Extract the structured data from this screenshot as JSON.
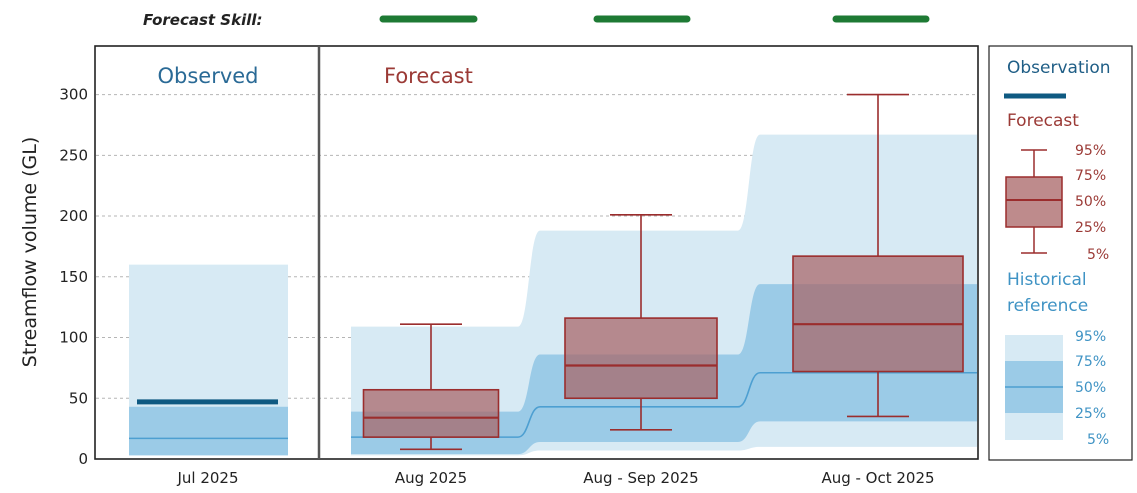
{
  "header": {
    "skill_label": "Forecast Skill:"
  },
  "chart_data": {
    "type": "box",
    "ylabel": "Streamflow volume (GL)",
    "ylim": [
      0,
      340
    ],
    "yticks": [
      0,
      50,
      100,
      150,
      200,
      250,
      300
    ],
    "grid": "dashed horizontal",
    "panels": {
      "observed_title": "Observed",
      "forecast_title": "Forecast"
    },
    "categories": [
      "Jul 2025",
      "Aug 2025",
      "Aug - Sep 2025",
      "Aug - Oct 2025"
    ],
    "observation": {
      "category": "Jul 2025",
      "value": 47
    },
    "observed_reference": {
      "p5": 3,
      "p25": 3,
      "p50": 17,
      "p75": 43,
      "p95": 160
    },
    "forecast_boxes": [
      {
        "category": "Aug 2025",
        "p5": 8,
        "p25": 18,
        "p50": 34,
        "p75": 57,
        "p95": 111
      },
      {
        "category": "Aug - Sep 2025",
        "p5": 24,
        "p25": 50,
        "p50": 77,
        "p75": 116,
        "p95": 201
      },
      {
        "category": "Aug - Oct 2025",
        "p5": 35,
        "p25": 72,
        "p50": 111,
        "p75": 167,
        "p95": 300
      }
    ],
    "historical_reference": [
      {
        "category": "Aug 2025",
        "p5": 3,
        "p25": 4,
        "p50": 18,
        "p75": 39,
        "p95": 109
      },
      {
        "category": "Aug - Sep 2025",
        "p5": 7,
        "p25": 14,
        "p50": 43,
        "p75": 86,
        "p95": 188
      },
      {
        "category": "Aug - Oct 2025",
        "p5": 10,
        "p25": 31,
        "p50": 71,
        "p75": 144,
        "p95": 267
      }
    ],
    "forecast_skill": [
      "good",
      "good",
      "good"
    ],
    "legend": {
      "observation_label": "Observation",
      "forecast_label": "Forecast",
      "historical_label_line1": "Historical",
      "historical_label_line2": "reference",
      "percentiles": [
        "95%",
        "75%",
        "50%",
        "25%",
        "5%"
      ]
    },
    "colors": {
      "observation": "#0f5a82",
      "forecast_fill": "#a86466",
      "forecast_edge": "#9b2d2d",
      "hist_95": "#d7eaf4",
      "hist_75": "#9bcbe7",
      "hist_median": "#4d9fd1",
      "skill_good": "#1e7a34"
    }
  }
}
